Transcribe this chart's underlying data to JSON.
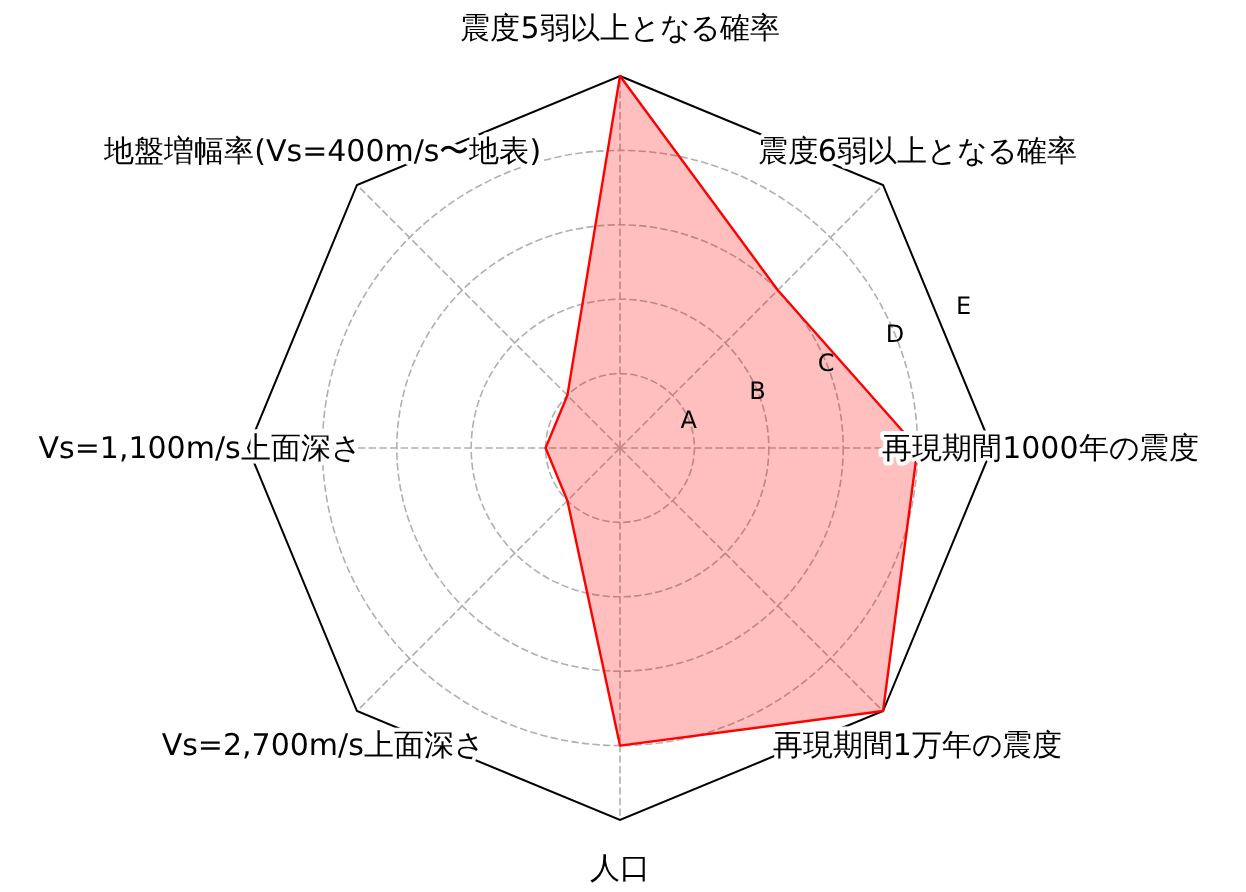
{
  "chart_data": {
    "type": "radar",
    "categories": [
      "震度5弱以上となる確率",
      "震度6弱以上となる確率",
      "再現期間1000年の震度",
      "再現期間1万年の震度",
      "人口",
      "Vs=2,700m/s上面深さ",
      "Vs=1,100m/s上面深さ",
      "地盤増幅率(Vs=400m/s〜地表)"
    ],
    "series": [
      {
        "color": "#ff0000",
        "values": [
          5,
          3,
          4,
          5,
          4,
          1,
          1,
          1
        ]
      }
    ],
    "ylim": [
      0,
      5
    ],
    "yticks": [
      {
        "value": 1,
        "label": "A"
      },
      {
        "value": 2,
        "label": "B"
      },
      {
        "value": 3,
        "label": "C"
      },
      {
        "value": 4,
        "label": "D"
      },
      {
        "value": 5,
        "label": "E"
      }
    ],
    "grid": true
  }
}
